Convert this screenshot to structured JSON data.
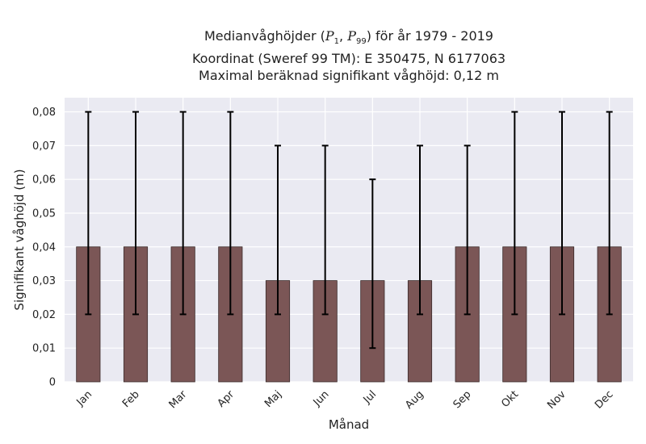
{
  "chart_data": {
    "type": "bar",
    "title_lines": {
      "line1_prefix": "Medianvåghöjder (",
      "p_low_sub": "1",
      "p_high_sub": "99",
      "line1_suffix": ") för år 1979 - 2019",
      "line2": "Koordinat (Sweref 99 TM): E 350475, N 6177063",
      "line3": "Maximal beräknad signifikant våghöjd: 0,12 m"
    },
    "xlabel": "Månad",
    "ylabel": "Signifikant våghöjd (m)",
    "categories": [
      "Jan",
      "Feb",
      "Mar",
      "Apr",
      "Maj",
      "Jun",
      "Jul",
      "Aug",
      "Sep",
      "Okt",
      "Nov",
      "Dec"
    ],
    "values": [
      0.04,
      0.04,
      0.04,
      0.04,
      0.03,
      0.03,
      0.03,
      0.03,
      0.04,
      0.04,
      0.04,
      0.04
    ],
    "p1": [
      0.02,
      0.02,
      0.02,
      0.02,
      0.02,
      0.02,
      0.01,
      0.02,
      0.02,
      0.02,
      0.02,
      0.02
    ],
    "p99": [
      0.08,
      0.08,
      0.08,
      0.08,
      0.07,
      0.07,
      0.06,
      0.07,
      0.07,
      0.08,
      0.08,
      0.08
    ],
    "yticks": [
      0,
      0.01,
      0.02,
      0.03,
      0.04,
      0.05,
      0.06,
      0.07,
      0.08
    ],
    "ytick_labels": [
      "0",
      "0,01",
      "0,02",
      "0,03",
      "0,04",
      "0,05",
      "0,06",
      "0,07",
      "0,08"
    ],
    "ylim": [
      0,
      0.0842
    ],
    "grid": true,
    "colors": {
      "bar": "#7b5656",
      "bar_edge": "#3a2a2a",
      "plot_bg": "#eaeaf2",
      "grid": "#ffffff",
      "errorbar": "#000000"
    }
  }
}
